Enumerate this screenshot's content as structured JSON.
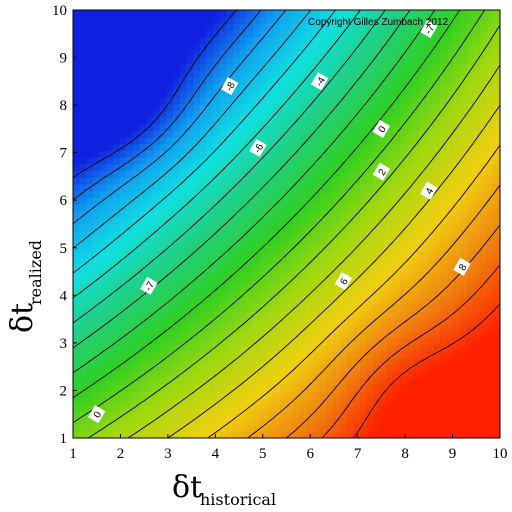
{
  "chart_data": {
    "type": "heatmap",
    "subtype": "filled-contour",
    "title": "",
    "copyright": "Copyright Gilles Zumbach 2012",
    "xlabel": {
      "main": "δt",
      "sub": "historical"
    },
    "ylabel": {
      "main": "δt",
      "sub": "realized"
    },
    "xlim": [
      1,
      10
    ],
    "ylim": [
      1,
      10
    ],
    "x_ticks": [
      1,
      2,
      3,
      4,
      5,
      6,
      7,
      8,
      9,
      10
    ],
    "y_ticks": [
      1,
      2,
      3,
      4,
      5,
      6,
      7,
      8,
      9,
      10
    ],
    "grid": false,
    "colormap": [
      "#1020e0",
      "#10a0f0",
      "#10e0e0",
      "#20d080",
      "#30d020",
      "#a0d810",
      "#f0d010",
      "#f08010",
      "#ff2000"
    ],
    "contour_levels": [
      -9,
      -8,
      -7,
      -6,
      -5,
      -4,
      -3,
      -2,
      -1,
      0,
      1,
      2,
      3,
      4,
      5,
      6,
      7,
      8,
      9
    ],
    "contour_labels": [
      {
        "value": "-8",
        "x": 4.3,
        "y": 8.4
      },
      {
        "value": "-4",
        "x": 6.2,
        "y": 8.5
      },
      {
        "value": "-6",
        "x": 4.9,
        "y": 7.1
      },
      {
        "value": "-7",
        "x": 8.5,
        "y": 9.6
      },
      {
        "value": "0",
        "x": 7.5,
        "y": 7.5
      },
      {
        "value": "2",
        "x": 7.5,
        "y": 6.6
      },
      {
        "value": "4",
        "x": 8.5,
        "y": 6.2
      },
      {
        "value": "6",
        "x": 6.7,
        "y": 4.3
      },
      {
        "value": "8",
        "x": 9.2,
        "y": 4.6
      },
      {
        "value": "-7",
        "x": 2.6,
        "y": 4.2
      },
      {
        "value": "0",
        "x": 1.5,
        "y": 1.5
      }
    ]
  }
}
